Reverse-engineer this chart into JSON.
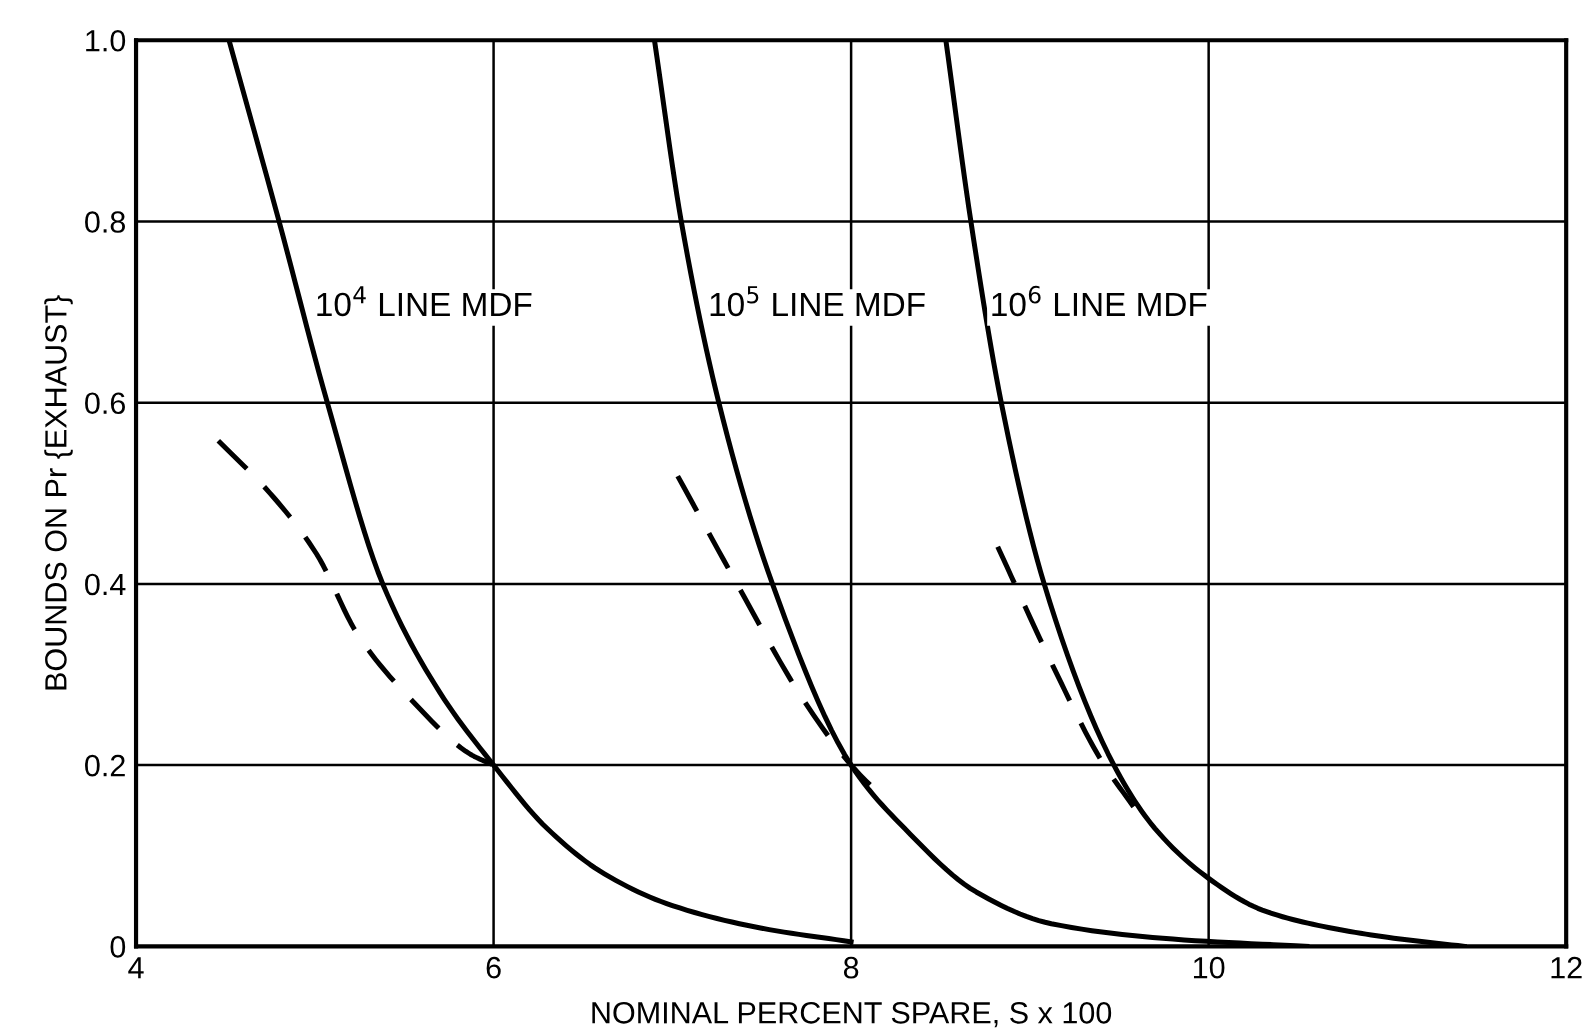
{
  "chart_data": {
    "type": "line",
    "xlabel": "NOMINAL PERCENT SPARE, S x 100",
    "ylabel": "BOUNDS ON Pr {EXHAUST}",
    "xlim": [
      4,
      12
    ],
    "ylim": [
      0,
      1.0
    ],
    "xticks": [
      4,
      6,
      8,
      10,
      12
    ],
    "yticks": [
      0,
      0.2,
      0.4,
      0.6,
      0.8,
      {
        "value": 1.0,
        "label": "1.0"
      }
    ],
    "grid": true,
    "marker": "none",
    "series": [
      {
        "color": "#000000",
        "line_style": "solid",
        "x": [
          4.52,
          4.8,
          5.07,
          5.38,
          5.7,
          6.0,
          6.3,
          6.62,
          7.0,
          7.5,
          8.0
        ],
        "values": [
          1.0,
          0.8,
          0.6,
          0.4,
          0.28,
          0.2,
          0.13,
          0.08,
          0.045,
          0.02,
          0.005
        ]
      },
      {
        "color": "#000000",
        "line_style": "dashed",
        "x": [
          4.46,
          4.75,
          5.01,
          5.24,
          5.55,
          5.87,
          6.0
        ],
        "values": [
          0.558,
          0.5,
          0.433,
          0.344,
          0.27,
          0.212,
          0.2
        ]
      },
      {
        "color": "#000000",
        "line_style": "solid",
        "x": [
          6.9,
          7.05,
          7.26,
          7.56,
          8.0,
          8.3,
          8.7,
          9.12,
          9.8,
          10.55
        ],
        "values": [
          1.0,
          0.8,
          0.6,
          0.4,
          0.2,
          0.13,
          0.06,
          0.025,
          0.008,
          0.0
        ]
      },
      {
        "color": "#000000",
        "line_style": "dashed",
        "x": [
          7.03,
          7.37,
          7.72,
          8.0,
          8.2
        ],
        "values": [
          0.519,
          0.397,
          0.276,
          0.2,
          0.16
        ]
      },
      {
        "color": "#000000",
        "line_style": "solid",
        "x": [
          8.53,
          8.67,
          8.84,
          9.08,
          9.47,
          9.7,
          10.0,
          10.3,
          10.64,
          11.0,
          11.43
        ],
        "values": [
          1.0,
          0.8,
          0.6,
          0.4,
          0.2,
          0.13,
          0.075,
          0.04,
          0.022,
          0.01,
          0.0
        ]
      },
      {
        "color": "#000000",
        "line_style": "dashed",
        "x": [
          8.82,
          9.13,
          9.4,
          9.58
        ],
        "values": [
          0.441,
          0.309,
          0.205,
          0.154
        ]
      }
    ],
    "annotations": [
      "10$^{4}$ LINE MDF",
      "10$^{5}$ LINE MDF",
      "10$^{6}$ LINE MDF"
    ]
  }
}
